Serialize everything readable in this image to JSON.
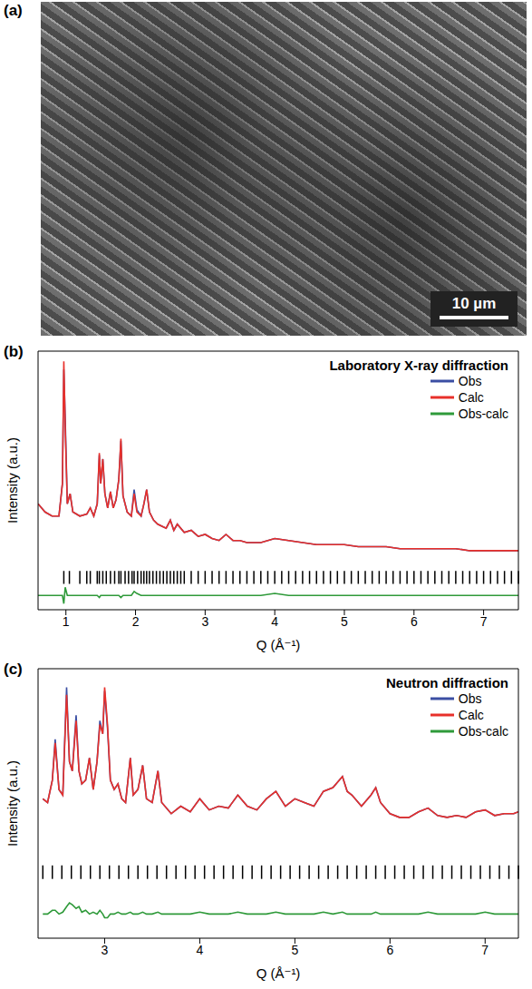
{
  "chart_data": [
    {
      "type": "image",
      "panel": "(a)",
      "scale_bar": "10 µm"
    },
    {
      "type": "line",
      "panel": "(b)",
      "title": "Laboratory X-ray diffraction",
      "x_label": "Q (Å⁻¹)",
      "y_label": "Intensity (a.u.)",
      "xlim": [
        0.6,
        7.5
      ],
      "xticks": [
        1,
        2,
        3,
        4,
        5,
        6,
        7
      ],
      "ylim": [
        -22,
        105
      ],
      "tick_labels": "x",
      "legend": "upper right",
      "x": [
        0.6,
        0.65,
        0.7,
        0.8,
        0.9,
        0.95,
        0.97,
        0.99,
        1.02,
        1.06,
        1.1,
        1.2,
        1.3,
        1.35,
        1.4,
        1.45,
        1.48,
        1.5,
        1.53,
        1.56,
        1.6,
        1.64,
        1.68,
        1.72,
        1.76,
        1.79,
        1.82,
        1.88,
        1.94,
        1.98,
        2.02,
        2.08,
        2.12,
        2.16,
        2.2,
        2.26,
        2.32,
        2.38,
        2.44,
        2.5,
        2.55,
        2.6,
        2.7,
        2.8,
        2.9,
        3.0,
        3.1,
        3.2,
        3.3,
        3.4,
        3.5,
        3.6,
        3.8,
        4.0,
        4.2,
        4.4,
        4.6,
        4.8,
        5.0,
        5.2,
        5.4,
        5.6,
        5.8,
        6.0,
        6.2,
        6.4,
        6.6,
        6.8,
        7.0,
        7.2,
        7.5
      ],
      "series": [
        {
          "name": "Obs",
          "color": "#3b4ea3",
          "values": [
            30,
            28,
            26,
            24,
            24,
            40,
            96,
            72,
            30,
            35,
            26,
            24,
            25,
            28,
            24,
            30,
            54,
            40,
            52,
            35,
            28,
            36,
            28,
            32,
            42,
            61,
            34,
            26,
            24,
            37,
            27,
            24,
            30,
            37,
            26,
            22,
            20,
            19,
            18,
            22,
            17,
            20,
            16,
            17,
            14,
            15,
            13,
            12,
            15,
            12,
            12,
            11,
            11,
            13,
            12,
            11,
            10,
            10,
            10,
            9,
            9,
            9,
            8,
            8,
            8,
            8,
            8,
            7,
            7,
            7,
            7
          ]
        },
        {
          "name": "Calc",
          "color": "#e8302a",
          "values": [
            30,
            28,
            26,
            24,
            24,
            40,
            100,
            68,
            30,
            35,
            26,
            24,
            25,
            28,
            24,
            30,
            55,
            40,
            52,
            35,
            28,
            36,
            28,
            32,
            42,
            62,
            34,
            26,
            24,
            35,
            26,
            24,
            30,
            37,
            26,
            22,
            20,
            19,
            18,
            22,
            17,
            20,
            16,
            17,
            14,
            15,
            13,
            12,
            15,
            12,
            12,
            11,
            11,
            13,
            12,
            11,
            10,
            10,
            10,
            9,
            9,
            9,
            8,
            8,
            8,
            8,
            8,
            7,
            7,
            7,
            7
          ]
        },
        {
          "name": "Obs-calc",
          "color": "#2f9a3a",
          "values": [
            -15,
            -15,
            -15,
            -15,
            -15,
            -15,
            -19,
            -11,
            -15,
            -15,
            -15,
            -15,
            -15,
            -15,
            -15,
            -15,
            -16,
            -15,
            -15,
            -15,
            -15,
            -15,
            -15,
            -15,
            -15,
            -16,
            -15,
            -15,
            -15,
            -13,
            -14,
            -15,
            -15,
            -15,
            -15,
            -15,
            -15,
            -15,
            -15,
            -15,
            -15,
            -15,
            -15,
            -15,
            -15,
            -15,
            -15,
            -15,
            -15,
            -15,
            -15,
            -15,
            -15,
            -14,
            -15,
            -15,
            -15,
            -15,
            -15,
            -15,
            -15,
            -15,
            -15,
            -15,
            -15,
            -15,
            -15,
            -15,
            -15,
            -15,
            -15
          ]
        }
      ],
      "reflections": [
        0.97,
        1.05,
        1.2,
        1.3,
        1.35,
        1.45,
        1.48,
        1.53,
        1.58,
        1.64,
        1.7,
        1.76,
        1.79,
        1.85,
        1.9,
        1.95,
        1.98,
        2.03,
        2.08,
        2.12,
        2.16,
        2.2,
        2.25,
        2.3,
        2.35,
        2.4,
        2.45,
        2.5,
        2.55,
        2.6,
        2.65,
        2.7,
        2.8,
        2.9,
        3.0,
        3.1,
        3.2,
        3.3,
        3.4,
        3.5,
        3.6,
        3.7,
        3.8,
        3.9,
        4.0,
        4.1,
        4.2,
        4.3,
        4.4,
        4.5,
        4.6,
        4.7,
        4.8,
        4.9,
        5.0,
        5.1,
        5.2,
        5.3,
        5.4,
        5.5,
        5.6,
        5.7,
        5.8,
        5.9,
        6.0,
        6.1,
        6.2,
        6.3,
        6.4,
        6.5,
        6.6,
        6.7,
        6.8,
        6.9,
        7.0,
        7.1,
        7.2,
        7.3,
        7.4,
        7.5
      ]
    },
    {
      "type": "line",
      "panel": "(c)",
      "title": "Neutron diffraction",
      "x_label": "Q (Å⁻¹)",
      "y_label": "Intensity (a.u.)",
      "xlim": [
        2.3,
        7.35
      ],
      "xticks": [
        3,
        4,
        5,
        6,
        7
      ],
      "ylim": [
        -35,
        110
      ],
      "tick_labels": "x",
      "legend": "upper right",
      "x": [
        2.35,
        2.4,
        2.45,
        2.48,
        2.52,
        2.56,
        2.6,
        2.63,
        2.66,
        2.7,
        2.73,
        2.76,
        2.8,
        2.84,
        2.88,
        2.92,
        2.95,
        2.98,
        3.0,
        3.03,
        3.06,
        3.1,
        3.14,
        3.18,
        3.22,
        3.27,
        3.3,
        3.35,
        3.4,
        3.44,
        3.5,
        3.56,
        3.6,
        3.7,
        3.8,
        3.9,
        4.0,
        4.1,
        4.2,
        4.3,
        4.4,
        4.5,
        4.6,
        4.7,
        4.8,
        4.9,
        5.0,
        5.1,
        5.2,
        5.3,
        5.4,
        5.5,
        5.55,
        5.6,
        5.7,
        5.8,
        5.85,
        5.9,
        6.0,
        6.1,
        6.2,
        6.3,
        6.4,
        6.5,
        6.6,
        6.7,
        6.8,
        6.9,
        7.0,
        7.1,
        7.2,
        7.3,
        7.35
      ],
      "series": [
        {
          "name": "Obs",
          "color": "#3b4ea3",
          "values": [
            40,
            38,
            50,
            72,
            45,
            42,
            100,
            60,
            55,
            85,
            55,
            48,
            50,
            62,
            45,
            60,
            82,
            75,
            98,
            78,
            50,
            45,
            48,
            40,
            38,
            62,
            42,
            45,
            58,
            40,
            38,
            55,
            38,
            32,
            36,
            33,
            40,
            34,
            36,
            35,
            42,
            36,
            34,
            40,
            44,
            36,
            40,
            38,
            36,
            44,
            46,
            52,
            44,
            42,
            36,
            42,
            46,
            38,
            32,
            30,
            30,
            33,
            35,
            31,
            30,
            31,
            30,
            33,
            34,
            31,
            32,
            32,
            33
          ]
        },
        {
          "name": "Calc",
          "color": "#e8302a",
          "values": [
            40,
            38,
            50,
            70,
            45,
            42,
            96,
            60,
            55,
            82,
            55,
            48,
            50,
            62,
            45,
            60,
            80,
            75,
            100,
            80,
            50,
            45,
            48,
            40,
            38,
            62,
            42,
            45,
            58,
            40,
            38,
            55,
            38,
            32,
            36,
            33,
            40,
            34,
            36,
            35,
            42,
            36,
            34,
            40,
            44,
            36,
            40,
            38,
            36,
            44,
            46,
            52,
            44,
            42,
            36,
            42,
            46,
            38,
            32,
            30,
            30,
            33,
            35,
            31,
            30,
            31,
            30,
            33,
            34,
            31,
            32,
            32,
            33
          ]
        },
        {
          "name": "Obs-calc",
          "color": "#2f9a3a",
          "values": [
            -22,
            -22,
            -20,
            -20,
            -22,
            -21,
            -18,
            -16,
            -17,
            -19,
            -18,
            -21,
            -20,
            -22,
            -21,
            -22,
            -20,
            -22,
            -24,
            -24,
            -22,
            -22,
            -21,
            -22,
            -22,
            -21,
            -22,
            -22,
            -21,
            -22,
            -22,
            -21,
            -22,
            -22,
            -22,
            -22,
            -21,
            -22,
            -22,
            -22,
            -21,
            -22,
            -22,
            -22,
            -21,
            -22,
            -22,
            -22,
            -22,
            -21,
            -22,
            -21,
            -22,
            -22,
            -22,
            -22,
            -21,
            -22,
            -22,
            -22,
            -22,
            -22,
            -21,
            -22,
            -22,
            -22,
            -22,
            -22,
            -21,
            -22,
            -22,
            -22,
            -22
          ]
        }
      ],
      "reflections": [
        2.35,
        2.45,
        2.55,
        2.65,
        2.75,
        2.85,
        2.95,
        3.05,
        3.15,
        3.25,
        3.35,
        3.45,
        3.55,
        3.65,
        3.75,
        3.85,
        3.95,
        4.05,
        4.15,
        4.25,
        4.35,
        4.45,
        4.55,
        4.65,
        4.75,
        4.85,
        4.95,
        5.05,
        5.15,
        5.25,
        5.35,
        5.45,
        5.55,
        5.65,
        5.75,
        5.85,
        5.95,
        6.05,
        6.15,
        6.25,
        6.35,
        6.45,
        6.55,
        6.65,
        6.75,
        6.85,
        6.95,
        7.05,
        7.15,
        7.25,
        7.35
      ]
    }
  ]
}
